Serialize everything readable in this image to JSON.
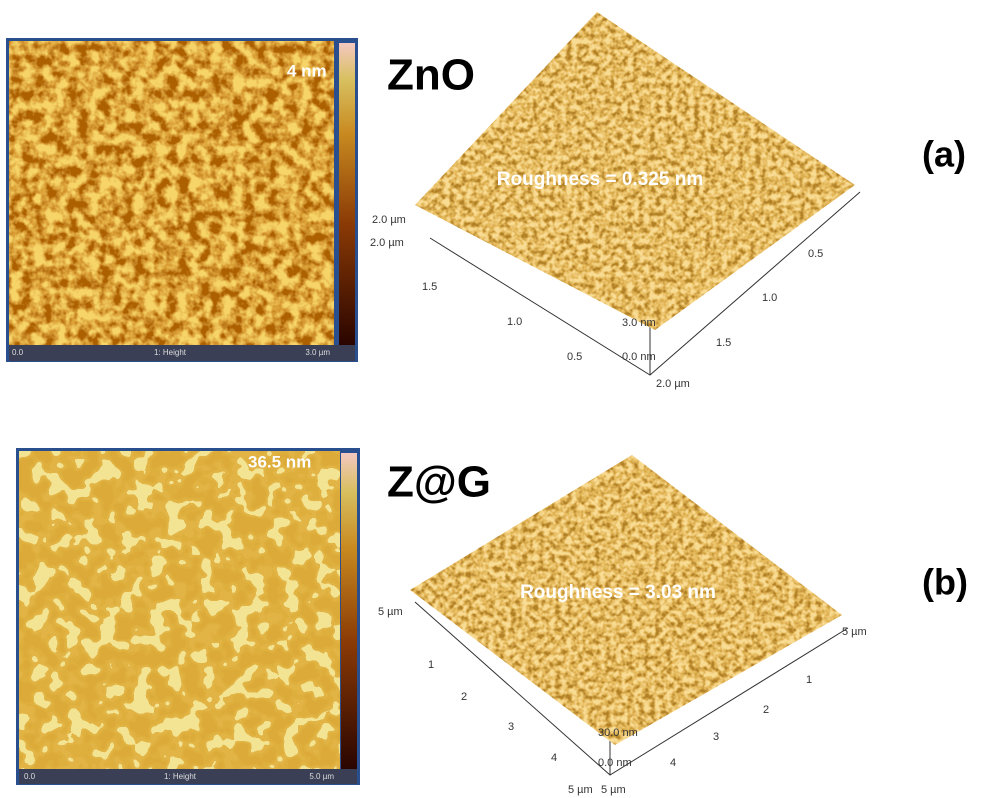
{
  "panels": [
    {
      "label": "(a)",
      "material": "ZnO",
      "height_map": {
        "scale_max": "4 nm",
        "x_start": "0.0",
        "channel": "1: Height",
        "x_end": "3.0 µm"
      },
      "surface_3d": {
        "roughness": "Roughness = 0.325 nm",
        "back_axis": "2.0 µm",
        "left_axis": [
          "2.0 µm",
          "1.5",
          "1.0",
          "0.5"
        ],
        "right_axis": [
          "0.5",
          "1.0",
          "1.5",
          "2.0 µm"
        ],
        "z_axis": [
          "3.0 nm",
          "0.0 nm"
        ]
      }
    },
    {
      "label": "(b)",
      "material": "Z@G",
      "height_map": {
        "scale_max": "36.5 nm",
        "x_start": "0.0",
        "channel": "1: Height",
        "x_end": "5.0 µm"
      },
      "surface_3d": {
        "roughness": "Roughness = 3.03 nm",
        "back_axis": "5 µm",
        "left_axis": [
          "1",
          "2",
          "3",
          "4",
          "5 µm"
        ],
        "right_axis": [
          "5 µm",
          "1",
          "2",
          "3",
          "4",
          "5 µm"
        ],
        "z_axis": [
          "30.0 nm",
          "0.0 nm"
        ]
      }
    }
  ]
}
